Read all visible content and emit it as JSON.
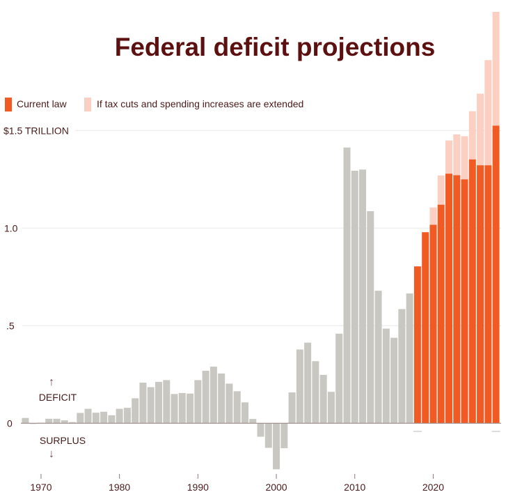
{
  "chart_data": {
    "type": "bar",
    "title": "Federal deficit projections",
    "xlabel": "",
    "ylabel": "",
    "ylim": [
      -0.3,
      2.15
    ],
    "grid": true,
    "legend_placement": "top-left",
    "y_ticks": [
      {
        "value": 0,
        "label": "0"
      },
      {
        "value": 0.5,
        "label": ".5"
      },
      {
        "value": 1.0,
        "label": "1.0"
      },
      {
        "value": 1.5,
        "label": "$1.5 TRILLION"
      }
    ],
    "x_ticks": [
      {
        "value": 1970,
        "label": "1970"
      },
      {
        "value": 1980,
        "label": "1980"
      },
      {
        "value": 1990,
        "label": "1990"
      },
      {
        "value": 2000,
        "label": "2000"
      },
      {
        "value": 2010,
        "label": "2010"
      },
      {
        "value": 2020,
        "label": "2020"
      }
    ],
    "annotations": {
      "deficit_label": "DEFICIT",
      "surplus_label": "SURPLUS",
      "up_arrow": "↑",
      "down_arrow": "↓"
    },
    "legend": [
      {
        "name": "Current law",
        "color": "#f25a24"
      },
      {
        "name": "If tax cuts and spending increases are extended",
        "color": "#fbd0c2"
      }
    ],
    "colors": {
      "historical": "#c8c7c1",
      "current_law": "#f25a24",
      "extended": "#fbd0c2",
      "gridline": "#e8e8e8",
      "zero_line": "#9a8a88"
    },
    "historical": {
      "years": [
        1968,
        1969,
        1970,
        1971,
        1972,
        1973,
        1974,
        1975,
        1976,
        1977,
        1978,
        1979,
        1980,
        1981,
        1982,
        1983,
        1984,
        1985,
        1986,
        1987,
        1988,
        1989,
        1990,
        1991,
        1992,
        1993,
        1994,
        1995,
        1996,
        1997,
        1998,
        1999,
        2000,
        2001,
        2002,
        2003,
        2004,
        2005,
        2006,
        2007,
        2008,
        2009,
        2010,
        2011,
        2012,
        2013,
        2014,
        2015,
        2016,
        2017
      ],
      "values": [
        0.027,
        -0.003,
        0.003,
        0.023,
        0.023,
        0.015,
        0.006,
        0.053,
        0.074,
        0.054,
        0.059,
        0.041,
        0.074,
        0.079,
        0.128,
        0.208,
        0.185,
        0.212,
        0.221,
        0.15,
        0.155,
        0.152,
        0.221,
        0.269,
        0.29,
        0.255,
        0.203,
        0.164,
        0.107,
        0.022,
        -0.069,
        -0.126,
        -0.236,
        -0.128,
        0.158,
        0.378,
        0.413,
        0.318,
        0.248,
        0.161,
        0.459,
        1.413,
        1.294,
        1.3,
        1.087,
        0.679,
        0.485,
        0.438,
        0.585,
        0.665
      ]
    },
    "projected": {
      "years": [
        2018,
        2019,
        2020,
        2021,
        2022,
        2023,
        2024,
        2025,
        2026,
        2027,
        2028
      ],
      "series": [
        {
          "name": "Current law",
          "values": [
            0.804,
            0.979,
            1.017,
            1.12,
            1.279,
            1.271,
            1.25,
            1.352,
            1.322,
            1.322,
            1.525
          ]
        },
        {
          "name": "If tax cuts and spending increases are extended",
          "values": [
            0.804,
            0.979,
            1.106,
            1.27,
            1.449,
            1.48,
            1.471,
            1.599,
            1.689,
            1.861,
            2.108
          ]
        }
      ]
    }
  }
}
